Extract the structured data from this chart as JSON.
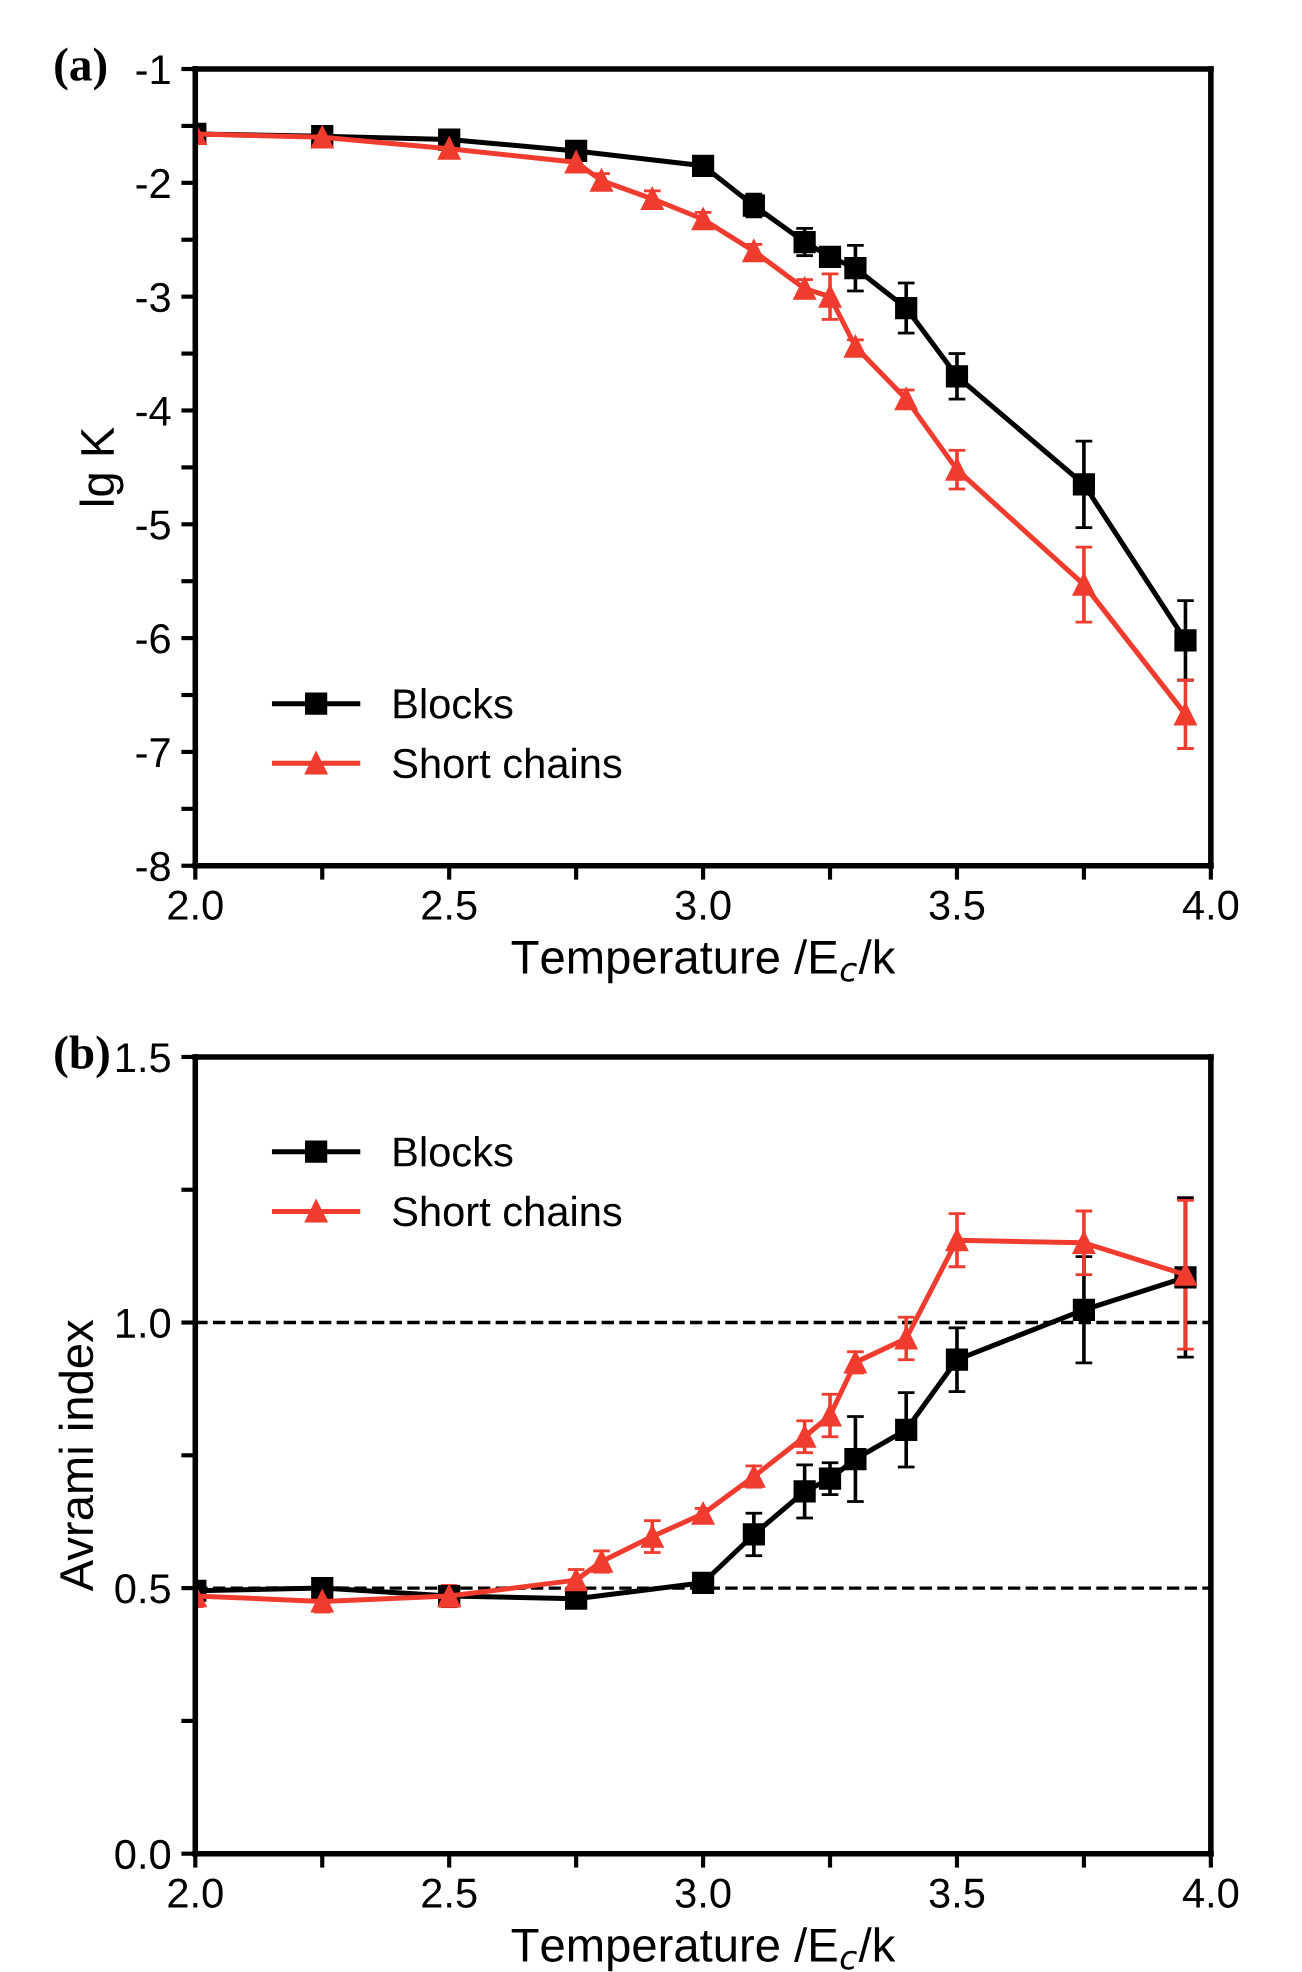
{
  "chart_data": [
    {
      "type": "line",
      "annotations": [
        "(a)"
      ],
      "xlabel": "Temperature /E$_{c}$/k",
      "ylabel": "lg K",
      "xlim": [
        2.0,
        4.0
      ],
      "ylim": [
        -8,
        -1
      ],
      "xticks": [
        {
          "value": 2.0,
          "label": "2.0"
        },
        {
          "value": 2.25,
          "label": null
        },
        {
          "value": 2.5,
          "label": "2.5"
        },
        {
          "value": 2.75,
          "label": null
        },
        {
          "value": 3.0,
          "label": "3.0"
        },
        {
          "value": 3.25,
          "label": null
        },
        {
          "value": 3.5,
          "label": "3.5"
        },
        {
          "value": 3.75,
          "label": null
        },
        {
          "value": 4.0,
          "label": "4.0"
        }
      ],
      "yticks": [
        -8,
        {
          "value": -7.5,
          "label": null
        },
        -7,
        {
          "value": -6.5,
          "label": null
        },
        -6,
        {
          "value": -5.5,
          "label": null
        },
        -5,
        {
          "value": -4.5,
          "label": null
        },
        -4,
        {
          "value": -3.5,
          "label": null
        },
        -3,
        {
          "value": -2.5,
          "label": null
        },
        -2,
        {
          "value": -1.5,
          "label": null
        },
        -1
      ],
      "legend": "bottom left",
      "grid": false,
      "line_style": "solid",
      "series": [
        {
          "name": "Blocks",
          "color": "#000000",
          "marker": "square",
          "x": [
            2.0,
            2.25,
            2.5,
            2.75,
            3.0,
            3.1,
            3.2,
            3.25,
            3.3,
            3.4,
            3.5,
            3.75,
            3.95
          ],
          "values": [
            -1.57,
            -1.59,
            -1.62,
            -1.72,
            -1.85,
            -2.2,
            -2.52,
            -2.65,
            -2.75,
            -3.1,
            -3.7,
            -4.65,
            -6.02
          ],
          "errors": [
            0.03,
            0.04,
            0.04,
            0.04,
            0.04,
            0.1,
            0.12,
            0.08,
            0.2,
            0.22,
            0.2,
            0.38,
            0.35
          ]
        },
        {
          "name": "Short chains",
          "color": "#f03c2e",
          "marker": "triangle",
          "x": [
            2.0,
            2.25,
            2.5,
            2.75,
            2.8,
            2.9,
            3.0,
            3.1,
            3.2,
            3.25,
            3.3,
            3.4,
            3.5,
            3.75,
            3.95
          ],
          "values": [
            -1.57,
            -1.6,
            -1.7,
            -1.82,
            -1.98,
            -2.14,
            -2.32,
            -2.6,
            -2.93,
            -3.0,
            -3.44,
            -3.9,
            -4.52,
            -5.53,
            -6.67
          ],
          "errors": [
            0.05,
            0.05,
            0.05,
            0.06,
            0.06,
            0.07,
            0.06,
            0.06,
            0.08,
            0.2,
            0.06,
            0.08,
            0.17,
            0.33,
            0.3
          ]
        }
      ]
    },
    {
      "type": "line",
      "annotations": [
        "(b)"
      ],
      "xlabel": "Temperature /E$_{c}$/k",
      "ylabel": "Avrami index",
      "xlim": [
        2.0,
        4.0
      ],
      "ylim": [
        0.0,
        1.5
      ],
      "xticks": [
        {
          "value": 2.0,
          "label": "2.0"
        },
        {
          "value": 2.25,
          "label": null
        },
        {
          "value": 2.5,
          "label": "2.5"
        },
        {
          "value": 2.75,
          "label": null
        },
        {
          "value": 3.0,
          "label": "3.0"
        },
        {
          "value": 3.25,
          "label": null
        },
        {
          "value": 3.5,
          "label": "3.5"
        },
        {
          "value": 3.75,
          "label": null
        },
        {
          "value": 4.0,
          "label": "4.0"
        }
      ],
      "yticks": [
        {
          "value": 0.0,
          "label": "0.0"
        },
        {
          "value": 0.25,
          "label": null
        },
        {
          "value": 0.5,
          "label": "0.5"
        },
        {
          "value": 0.75,
          "label": null
        },
        {
          "value": 1.0,
          "label": "1.0"
        },
        {
          "value": 1.25,
          "label": null
        },
        {
          "value": 1.5,
          "label": "1.5"
        }
      ],
      "legend": "top left",
      "grid": false,
      "line_style": "solid",
      "ref_lines": [
        {
          "axis": "y",
          "value": 0.5,
          "color": "#000000",
          "line_style": "dashed"
        },
        {
          "axis": "y",
          "value": 1.0,
          "color": "#000000",
          "line_style": "dashed"
        }
      ],
      "series": [
        {
          "name": "Blocks",
          "color": "#000000",
          "marker": "square",
          "x": [
            2.0,
            2.25,
            2.5,
            2.75,
            3.0,
            3.1,
            3.2,
            3.25,
            3.3,
            3.4,
            3.5,
            3.75,
            3.95
          ],
          "values": [
            0.495,
            0.5,
            0.485,
            0.48,
            0.51,
            0.601,
            0.682,
            0.706,
            0.743,
            0.798,
            0.93,
            1.024,
            1.085
          ],
          "errors": [
            0.01,
            0.01,
            0.01,
            0.01,
            0.01,
            0.04,
            0.05,
            0.03,
            0.08,
            0.07,
            0.06,
            0.1,
            0.15
          ]
        },
        {
          "name": "Short chains",
          "color": "#f03c2e",
          "marker": "triangle",
          "x": [
            2.0,
            2.25,
            2.5,
            2.75,
            2.8,
            2.9,
            3.0,
            3.1,
            3.2,
            3.25,
            3.3,
            3.4,
            3.5,
            3.75,
            3.95
          ],
          "values": [
            0.485,
            0.475,
            0.485,
            0.515,
            0.55,
            0.597,
            0.64,
            0.71,
            0.785,
            0.825,
            0.925,
            0.97,
            1.155,
            1.15,
            1.09
          ],
          "errors": [
            0.02,
            0.02,
            0.02,
            0.02,
            0.02,
            0.03,
            0.01,
            0.02,
            0.03,
            0.04,
            0.02,
            0.04,
            0.05,
            0.06,
            0.14
          ]
        }
      ]
    }
  ]
}
